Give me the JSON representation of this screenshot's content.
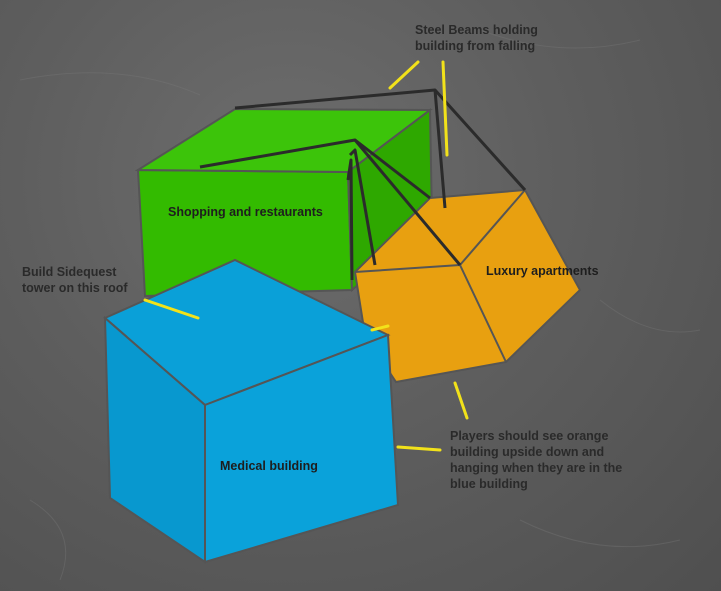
{
  "labels": {
    "steel_beams_1": "Steel Beams holding",
    "steel_beams_2": "building from falling",
    "shopping": "Shopping and restaurants",
    "luxury": "Luxury apartments",
    "sidequest_1": "Build Sidequest",
    "sidequest_2": "tower on this roof",
    "medical": "Medical building",
    "players_1": "Players should see orange",
    "players_2": "building upside down and",
    "players_3": "hanging when they are in the",
    "players_4": "blue building"
  },
  "colors": {
    "background": "#5f5f5f",
    "green_building": "#33bb00",
    "orange_building": "#e8a010",
    "blue_building": "#0aa0d8",
    "beam": "#2b2b2b",
    "edge": "#555555",
    "callout_line": "#f2e21a"
  }
}
